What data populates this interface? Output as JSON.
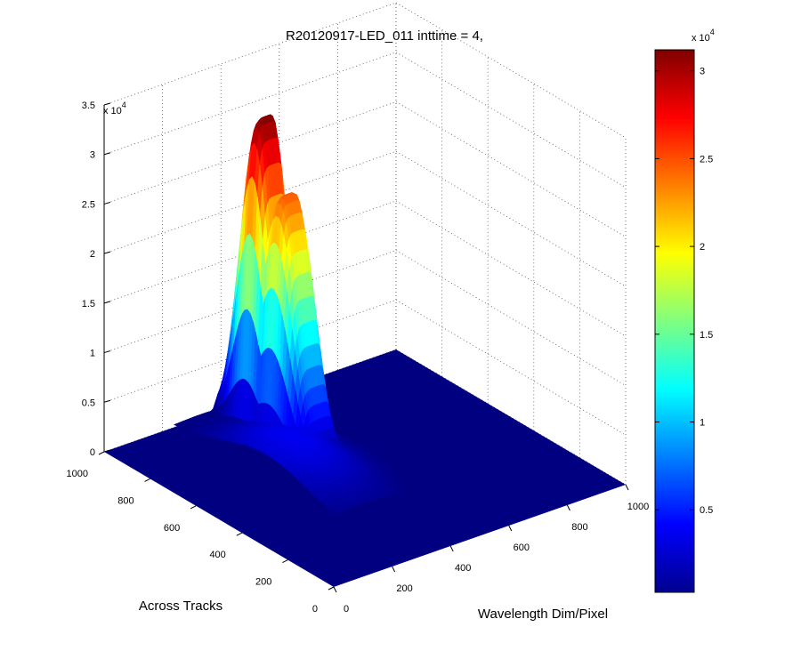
{
  "chart_data": {
    "type": "surface",
    "title": "R20120917-LED_011 inttime = 4,",
    "xlabel": "Wavelength Dim/Pixel",
    "ylabel": "Across Tracks",
    "zlabel": "",
    "x_ticks": [
      "0",
      "200",
      "400",
      "600",
      "800",
      "1000"
    ],
    "y_ticks": [
      "0",
      "200",
      "400",
      "600",
      "800",
      "1000"
    ],
    "z_ticks": [
      "0",
      "0.5",
      "1",
      "1.5",
      "2",
      "2.5",
      "3",
      "3.5"
    ],
    "z_exponent": {
      "base": "x 10",
      "power": "4"
    },
    "xlim": [
      0,
      1000
    ],
    "ylim": [
      0,
      1000
    ],
    "zlim": [
      0,
      35000
    ],
    "grid": true,
    "colormap": "jet",
    "colorbar": {
      "ticks": [
        "0.5",
        "1",
        "1.5",
        "2",
        "2.5",
        "3"
      ],
      "range": [
        300,
        31200
      ],
      "exponent": {
        "base": "x 10",
        "power": "4"
      }
    },
    "peak": {
      "x_range": [
        380,
        520
      ],
      "y_center": 860,
      "y_width": 90,
      "max_value": 31200,
      "secondary_max": 26000,
      "secondary_y": 760
    },
    "baseline": 0
  }
}
